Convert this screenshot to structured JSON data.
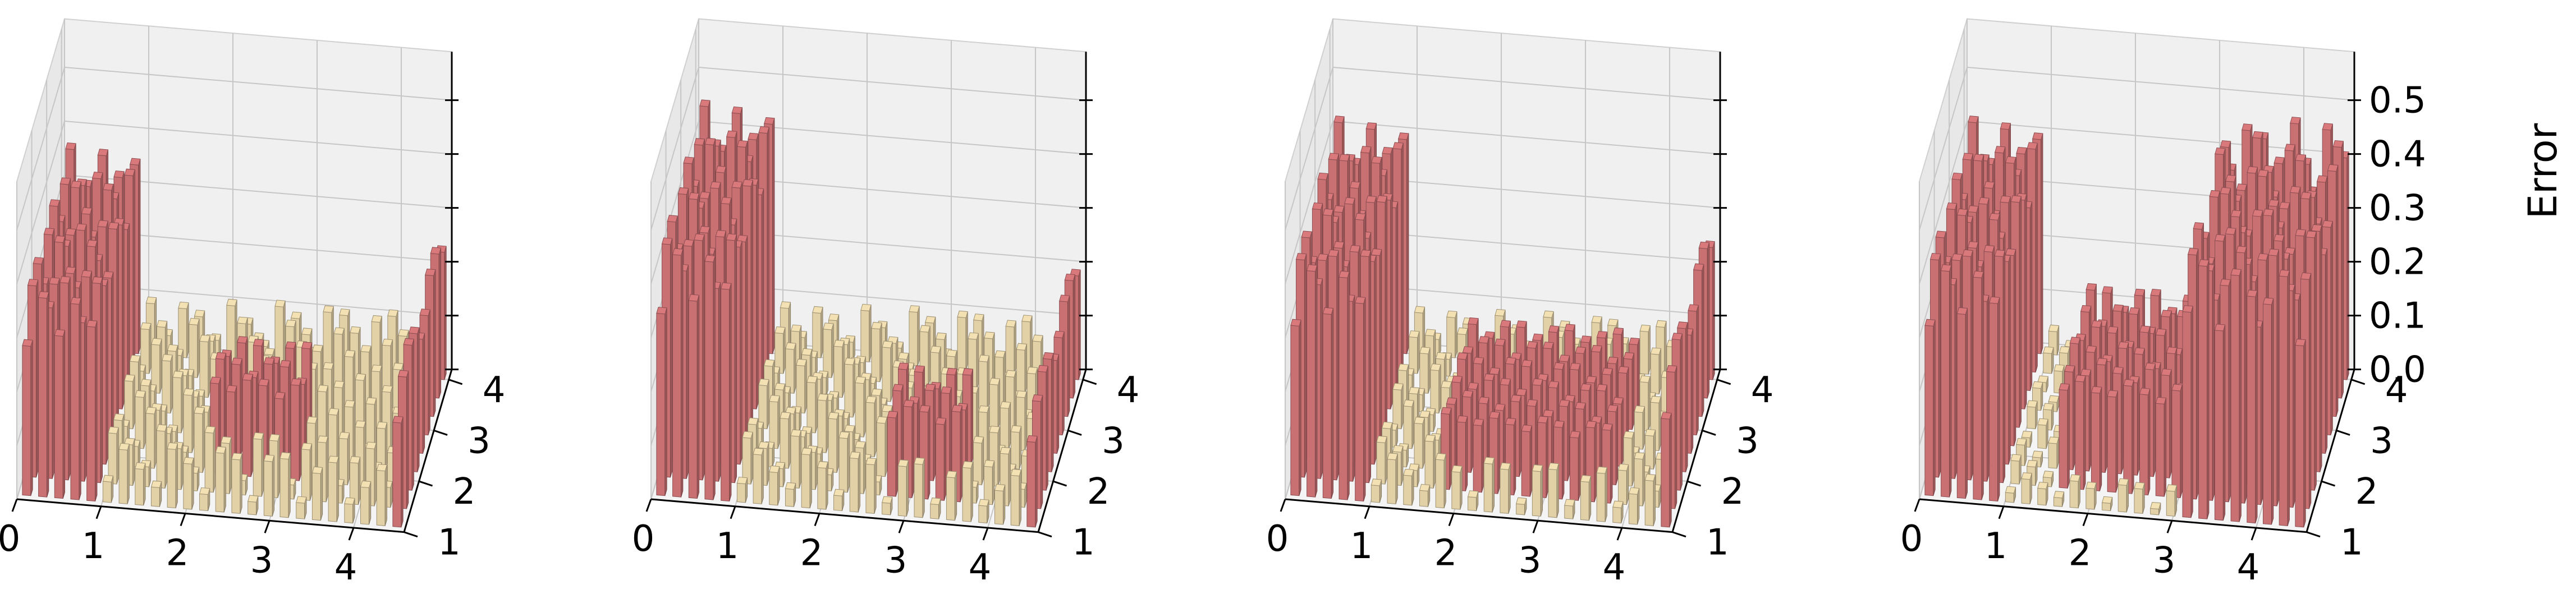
{
  "chart_data": {
    "type": "bar3d",
    "zlabel": "Error",
    "x_ticks": [
      "0",
      "1",
      "2",
      "3",
      "4"
    ],
    "y_ticks": [
      "1",
      "2",
      "3",
      "4"
    ],
    "z_ticks": [
      "0.0",
      "0.1",
      "0.2",
      "0.3",
      "0.4",
      "0.5"
    ],
    "xlim": [
      0,
      4.6
    ],
    "ylim": [
      1,
      4.2
    ],
    "zlim": [
      0,
      0.5
    ],
    "colors": {
      "high": "#c97073",
      "low": "#e2d0a6",
      "pane": "#f0f0f0",
      "grid": "#c6c6c6"
    },
    "panels": [
      {
        "panel": 1,
        "low_error_region_x": [
          1.0,
          4.4
        ],
        "high_error_left": 0.37,
        "high_error_right": 0.27,
        "low_error_level": 0.11,
        "hole_x": [
          2.2,
          3.2
        ],
        "hole_y": [
          1.8,
          2.8
        ],
        "hole_level": 0.18
      },
      {
        "panel": 2,
        "low_error_region_x": [
          1.0,
          4.4
        ],
        "high_error_left": 0.45,
        "high_error_right": 0.22,
        "low_error_level": 0.1,
        "hole_x": [
          2.6,
          3.6
        ],
        "hole_y": [
          1.3,
          2.3
        ],
        "hole_level": 0.17
      },
      {
        "panel": 3,
        "low_error_region_x": [
          1.0,
          4.4
        ],
        "high_error_left": 0.42,
        "high_error_right": 0.28,
        "low_error_level": 0.09,
        "hole_x": [
          1.8,
          3.8
        ],
        "hole_y": [
          1.4,
          3.4
        ],
        "hole_level": 0.14
      },
      {
        "panel": 4,
        "low_error_region_x": [
          1.0,
          3.0
        ],
        "high_error_left": 0.42,
        "high_error_right": 0.47,
        "low_error_level": 0.05,
        "hole_x": [
          1.6,
          3.8
        ],
        "hole_y": [
          1.5,
          3.6
        ],
        "hole_level": 0.2
      }
    ]
  }
}
